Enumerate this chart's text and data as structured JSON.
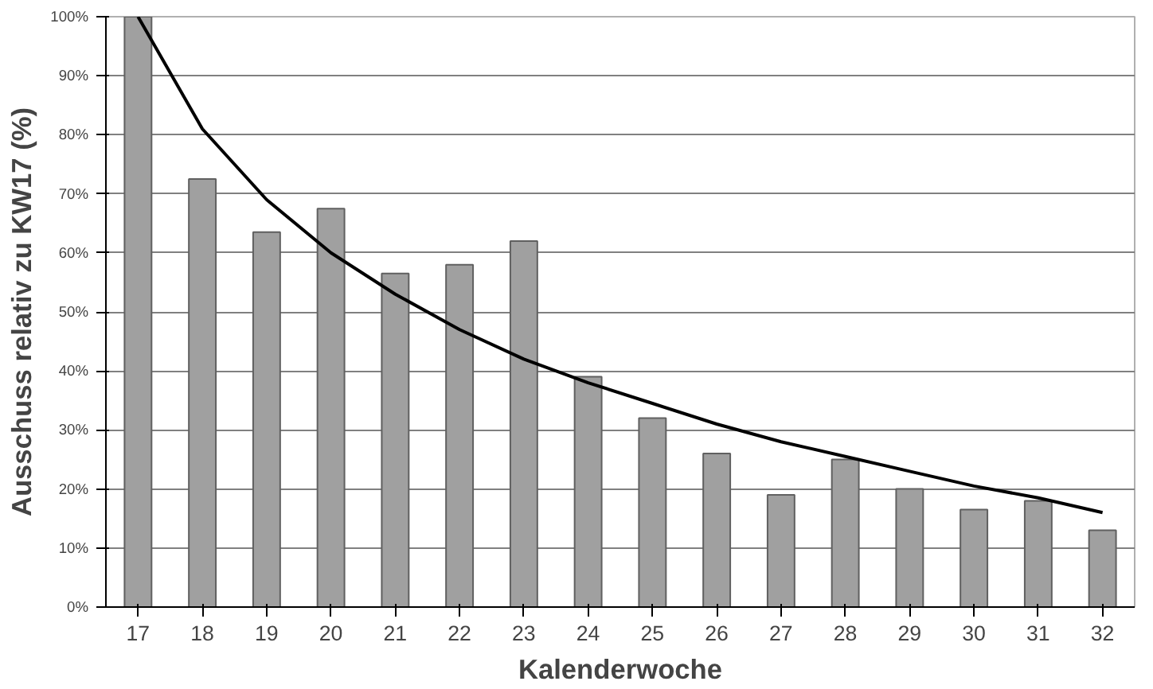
{
  "chart_data": {
    "type": "bar",
    "xlabel": "Kalenderwoche",
    "ylabel": "Ausschuss relativ zu KW17 (%)",
    "categories": [
      "17",
      "18",
      "19",
      "20",
      "21",
      "22",
      "23",
      "24",
      "25",
      "26",
      "27",
      "28",
      "29",
      "30",
      "31",
      "32"
    ],
    "series": [
      {
        "color": "#a0a0a0",
        "values": [
          100,
          72.5,
          63.5,
          67.5,
          56.5,
          58,
          62,
          39,
          32,
          26,
          19,
          25,
          20,
          16.5,
          18,
          13
        ]
      },
      {
        "type": "line",
        "color": "#000000",
        "values": [
          100,
          81,
          69,
          60,
          53,
          47,
          42,
          38,
          34.5,
          31,
          28,
          25.5,
          23,
          20.5,
          18.5,
          16
        ]
      }
    ],
    "ylim": [
      0,
      100
    ],
    "yticks": [
      {
        "value": 0,
        "label": "0%"
      },
      {
        "value": 10,
        "label": "10%"
      },
      {
        "value": 20,
        "label": "20%"
      },
      {
        "value": 30,
        "label": "30%"
      },
      {
        "value": 40,
        "label": "40%"
      },
      {
        "value": 50,
        "label": "50%"
      },
      {
        "value": 60,
        "label": "60%"
      },
      {
        "value": 70,
        "label": "70%"
      },
      {
        "value": 80,
        "label": "80%"
      },
      {
        "value": 90,
        "label": "90%"
      },
      {
        "value": 100,
        "label": "100%"
      }
    ],
    "grid": "y",
    "marker": "none",
    "line_style": "solid"
  }
}
